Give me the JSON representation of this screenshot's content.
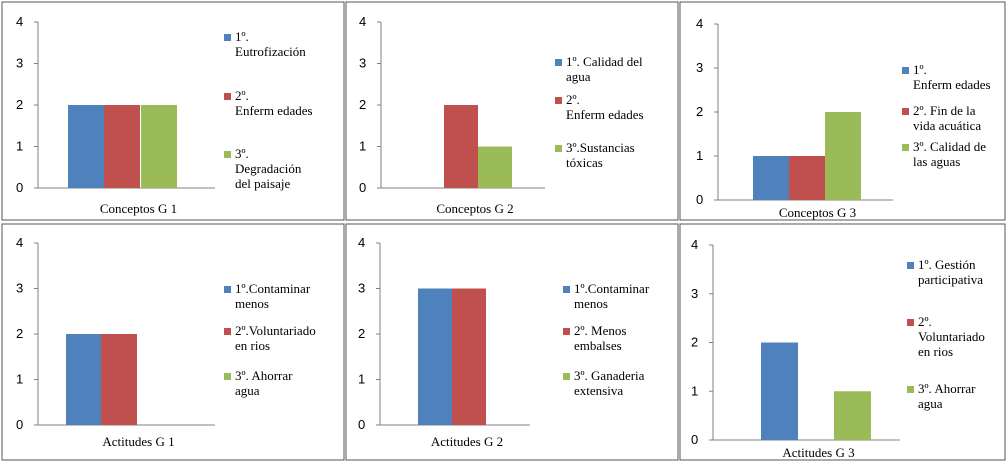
{
  "colors": {
    "s1": "#4F81BD",
    "s2": "#C0504D",
    "s3": "#9BBB59",
    "axis": "#808080",
    "frame": "#555555"
  },
  "chart_data": [
    {
      "type": "bar",
      "xlabel": "Conceptos G 1",
      "ylim": [
        0,
        4
      ],
      "yticks": [
        0,
        1,
        2,
        3,
        4
      ],
      "series": [
        {
          "name": "1º. Eutrofización",
          "values": [
            2
          ]
        },
        {
          "name": "2º. Enferm edades",
          "values": [
            2
          ]
        },
        {
          "name": "3º. Degradación del paisaje",
          "values": [
            2
          ]
        }
      ],
      "legend": {
        "position": "right",
        "entries": [
          [
            "1º.",
            "Eutrofización"
          ],
          [
            "2º.",
            "Enferm edades"
          ],
          [
            "3º.",
            "Degradación",
            "del paisaje"
          ]
        ]
      }
    },
    {
      "type": "bar",
      "xlabel": "Conceptos G 2",
      "ylim": [
        0,
        4
      ],
      "yticks": [
        0,
        1,
        2,
        3,
        4
      ],
      "series": [
        {
          "name": "1º. Calidad del agua",
          "values": [
            0
          ]
        },
        {
          "name": "2º. Enferm edades",
          "values": [
            2
          ]
        },
        {
          "name": "3º.Sustancias tóxicas",
          "values": [
            1
          ]
        }
      ],
      "legend": {
        "position": "right",
        "entries": [
          [
            "1º. Calidad del",
            "agua"
          ],
          [
            "2º.",
            "Enferm edades"
          ],
          [
            "3º.Sustancias",
            "tóxicas"
          ]
        ]
      }
    },
    {
      "type": "bar",
      "xlabel": "Conceptos G 3",
      "ylim": [
        0,
        4
      ],
      "yticks": [
        0,
        1,
        2,
        3,
        4
      ],
      "series": [
        {
          "name": "1º. Enferm edades",
          "values": [
            1
          ]
        },
        {
          "name": "2º. Fin de la vida acuática",
          "values": [
            1
          ]
        },
        {
          "name": "3º. Calidad de las aguas",
          "values": [
            2
          ]
        }
      ],
      "legend": {
        "position": "right",
        "entries": [
          [
            "1º.",
            "Enferm edades"
          ],
          [
            "2º. Fin de la",
            "vida acuática"
          ],
          [
            "3º. Calidad de",
            "las aguas"
          ]
        ]
      }
    },
    {
      "type": "bar",
      "xlabel": "Actitudes G 1",
      "ylim": [
        0,
        4
      ],
      "yticks": [
        0,
        1,
        2,
        3,
        4
      ],
      "series": [
        {
          "name": "1º.Contaminar menos",
          "values": [
            2
          ]
        },
        {
          "name": "2º.Voluntariado en rios",
          "values": [
            2
          ]
        },
        {
          "name": "3º. Ahorrar agua",
          "values": [
            0
          ]
        }
      ],
      "legend": {
        "position": "right",
        "entries": [
          [
            "1º.Contaminar",
            "menos"
          ],
          [
            "2º.Voluntariado",
            "en rios"
          ],
          [
            "3º. Ahorrar",
            "agua"
          ]
        ]
      }
    },
    {
      "type": "bar",
      "xlabel": "Actitudes G 2",
      "ylim": [
        0,
        4
      ],
      "yticks": [
        0,
        1,
        2,
        3,
        4
      ],
      "series": [
        {
          "name": "1º.Contaminar menos",
          "values": [
            3
          ]
        },
        {
          "name": "2º. Menos embalses",
          "values": [
            3
          ]
        },
        {
          "name": "3º. Ganaderia extensiva",
          "values": [
            0
          ]
        }
      ],
      "legend": {
        "position": "right",
        "entries": [
          [
            "1º.Contaminar",
            "menos"
          ],
          [
            "2º. Menos",
            "embalses"
          ],
          [
            "3º. Ganaderia",
            "extensiva"
          ]
        ]
      }
    },
    {
      "type": "bar",
      "xlabel": "Actitudes G 3",
      "ylim": [
        0,
        4
      ],
      "yticks": [
        0,
        1,
        2,
        3,
        4
      ],
      "series": [
        {
          "name": "1º. Gestión participativa",
          "values": [
            2
          ]
        },
        {
          "name": "2º. Voluntariado en rios",
          "values": [
            0
          ]
        },
        {
          "name": "3º. Ahorrar agua",
          "values": [
            1
          ]
        }
      ],
      "legend": {
        "position": "right",
        "entries": [
          [
            "1º. Gestión",
            "participativa"
          ],
          [
            "2º.",
            "Voluntariado",
            "en rios"
          ],
          [
            "3º. Ahorrar",
            "agua"
          ]
        ]
      }
    }
  ]
}
